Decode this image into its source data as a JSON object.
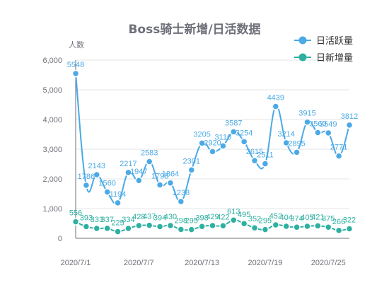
{
  "chart_data": {
    "type": "line",
    "title": "Boss骑士新增/日活数据",
    "ylabel": "人数",
    "ylim": [
      0,
      6000
    ],
    "yticks": [
      "0",
      "1,000",
      "2,000",
      "3,000",
      "4,000",
      "5,000",
      "6,000"
    ],
    "x": [
      "2020/7/1",
      "2020/7/2",
      "2020/7/3",
      "2020/7/4",
      "2020/7/5",
      "2020/7/6",
      "2020/7/7",
      "2020/7/8",
      "2020/7/9",
      "2020/7/10",
      "2020/7/11",
      "2020/7/12",
      "2020/7/13",
      "2020/7/14",
      "2020/7/15",
      "2020/7/16",
      "2020/7/17",
      "2020/7/18",
      "2020/7/19",
      "2020/7/20",
      "2020/7/21",
      "2020/7/22",
      "2020/7/23",
      "2020/7/24",
      "2020/7/25",
      "2020/7/26",
      "2020/7/27"
    ],
    "xtick_labels": [
      "2020/7/1",
      "2020/7/7",
      "2020/7/13",
      "2020/7/19",
      "2020/7/25"
    ],
    "legend_position": "top-right",
    "series": [
      {
        "name": "日活跃量",
        "color": "#4ba9e6",
        "values": [
          5548,
          1786,
          2143,
          1560,
          1194,
          2217,
          1947,
          2583,
          1798,
          1864,
          1238,
          2301,
          3205,
          2920,
          3110,
          3587,
          3254,
          2615,
          2511,
          4439,
          3214,
          2895,
          3915,
          3560,
          3549,
          2771,
          3812
        ]
      },
      {
        "name": "日新增量",
        "color": "#2eb0a0",
        "values": [
          556,
          393,
          333,
          337,
          225,
          334,
          428,
          437,
          394,
          430,
          298,
          295,
          398,
          429,
          422,
          613,
          495,
          352,
          295,
          452,
          404,
          374,
          405,
          421,
          375,
          266,
          322
        ]
      }
    ]
  }
}
